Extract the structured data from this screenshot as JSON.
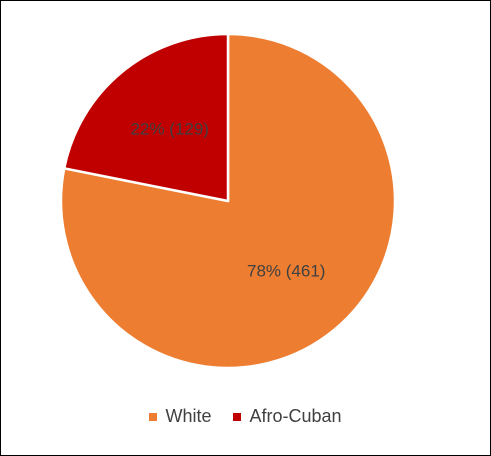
{
  "chart_data": {
    "type": "pie",
    "categories": [
      "White",
      "Afro-Cuban"
    ],
    "values": [
      461,
      129
    ],
    "percentages": [
      78,
      22
    ],
    "data_labels": [
      "78% (461)",
      "22% (129)"
    ],
    "colors": [
      "#ED7D31",
      "#C00000"
    ],
    "start_angle_deg": 0,
    "direction": "clockwise",
    "legend": {
      "position": "bottom",
      "items": [
        {
          "label": "White",
          "color": "#ED7D31"
        },
        {
          "label": "Afro-Cuban",
          "color": "#C00000"
        }
      ]
    }
  }
}
